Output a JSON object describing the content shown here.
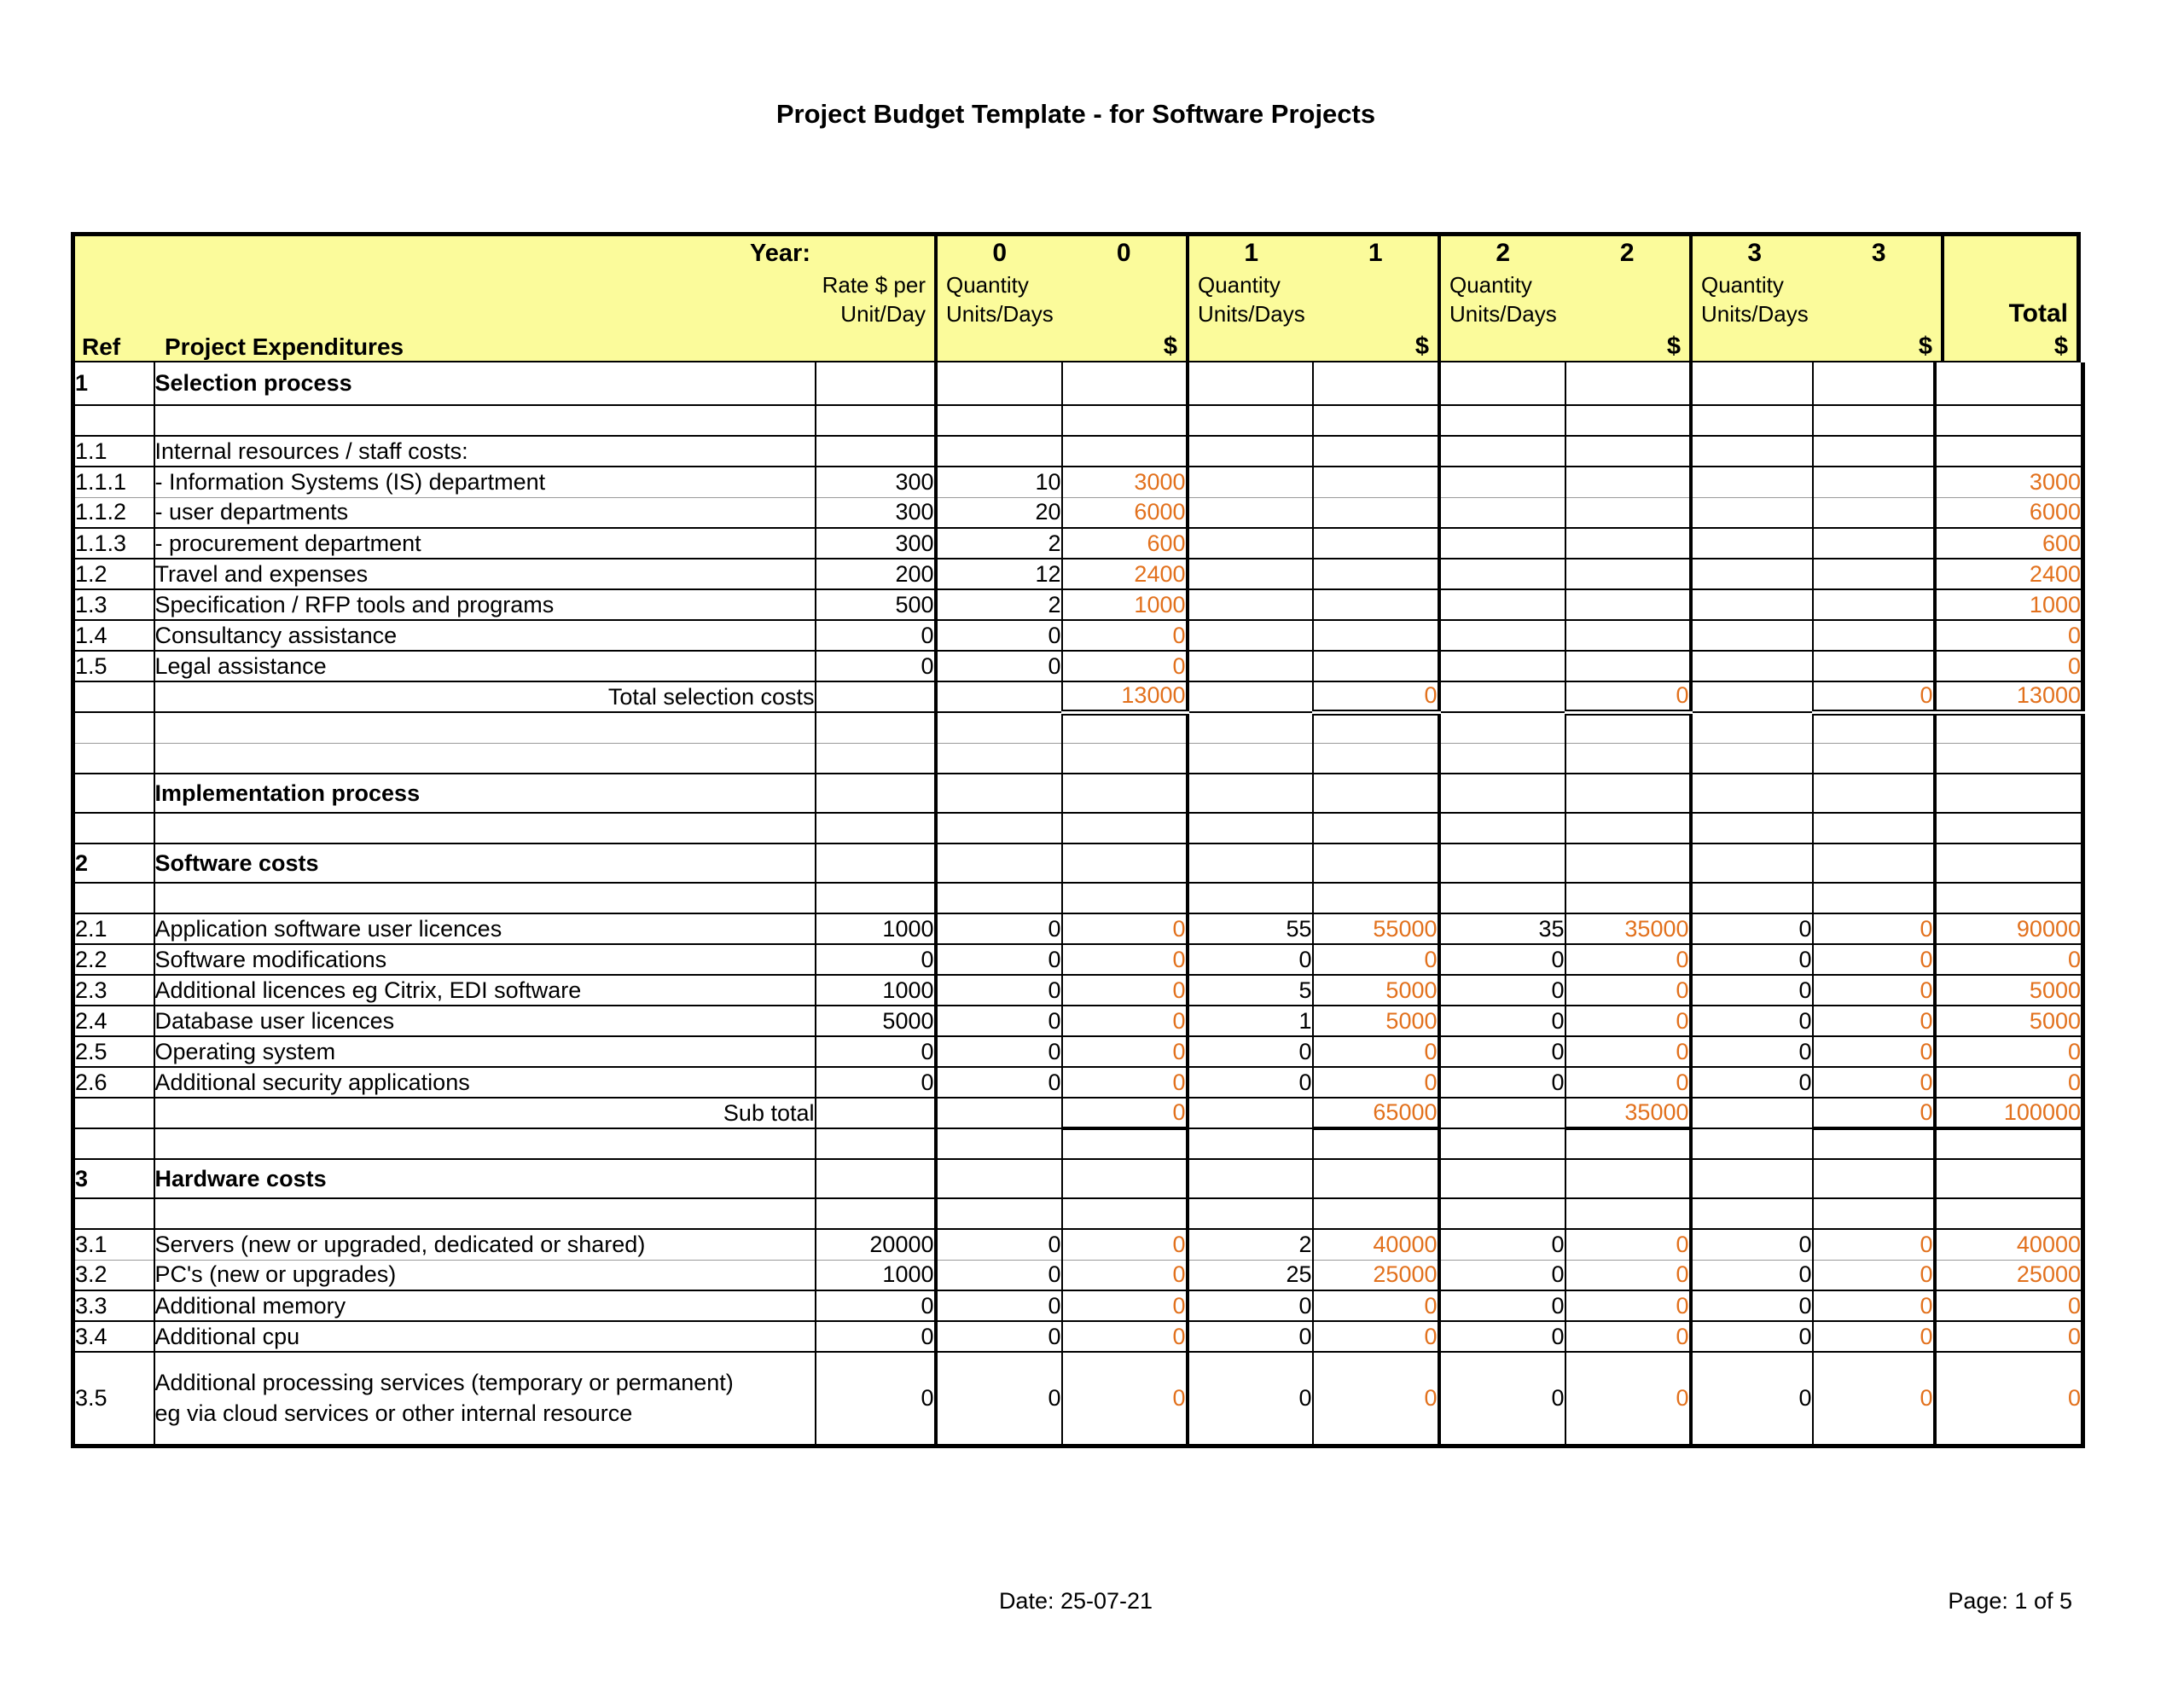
{
  "title": "Project Budget Template - for Software Projects",
  "footer": {
    "date": "Date: 25-07-21",
    "page": "Page: 1 of 5"
  },
  "colors": {
    "header_yellow": "#fbfb9b",
    "value_orange": "#e2711d"
  },
  "header": {
    "year_label": "Year:",
    "years": [
      "0",
      "1",
      "2",
      "3"
    ],
    "rate_line1": "Rate $ per",
    "rate_line2": "Unit/Day",
    "qty_line1": "Quantity",
    "qty_line2": "Units/Days",
    "ref_label": "Ref",
    "expenditures_label": "Project Expenditures",
    "dollar": "$",
    "total_label": "Total"
  },
  "table": {
    "rows": [
      {
        "type": "section",
        "ref": "1",
        "desc": "Selection process",
        "h": 50
      },
      {
        "type": "blank"
      },
      {
        "type": "item",
        "ref": "1.1",
        "desc": "Internal resources / staff costs:"
      },
      {
        "type": "item",
        "ref": "1.1.1",
        "desc": "- Information Systems (IS) department",
        "rate": "300",
        "q0": "10",
        "v0": "3000",
        "total": "3000"
      },
      {
        "type": "item",
        "ref": "1.1.2",
        "desc": "- user departments",
        "rate": "300",
        "q0": "20",
        "v0": "6000",
        "total": "6000",
        "top": "soft"
      },
      {
        "type": "item",
        "ref": "1.1.3",
        "desc": "- procurement department",
        "rate": "300",
        "q0": "2",
        "v0": "600",
        "total": "600"
      },
      {
        "type": "item",
        "ref": "1.2",
        "desc": "Travel and expenses",
        "rate": "200",
        "q0": "12",
        "v0": "2400",
        "total": "2400"
      },
      {
        "type": "item",
        "ref": "1.3",
        "desc": "Specification / RFP tools and programs",
        "rate": "500",
        "q0": "2",
        "v0": "1000",
        "total": "1000"
      },
      {
        "type": "item",
        "ref": "1.4",
        "desc": "Consultancy assistance",
        "rate": "0",
        "q0": "0",
        "v0": "0",
        "total": "0"
      },
      {
        "type": "item",
        "ref": "1.5",
        "desc": "Legal assistance",
        "rate": "0",
        "q0": "0",
        "v0": "0",
        "total": "0"
      },
      {
        "type": "total",
        "desc": "Total selection costs",
        "v0": "13000",
        "v1": "0",
        "v2": "0",
        "v3": "0",
        "total": "13000",
        "underline": "double"
      },
      {
        "type": "blank"
      },
      {
        "type": "blank",
        "top": "soft"
      },
      {
        "type": "section",
        "ref": "",
        "desc": "Implementation process",
        "h": 46
      },
      {
        "type": "blank"
      },
      {
        "type": "section",
        "ref": "2",
        "desc": "Software costs",
        "h": 46
      },
      {
        "type": "blank"
      },
      {
        "type": "item",
        "ref": "2.1",
        "desc": "Application software user licences",
        "rate": "1000",
        "q0": "0",
        "v0": "0",
        "q1": "55",
        "v1": "55000",
        "q2": "35",
        "v2": "35000",
        "q3": "0",
        "v3": "0",
        "total": "90000"
      },
      {
        "type": "item",
        "ref": "2.2",
        "desc": "Software modifications",
        "rate": "0",
        "q0": "0",
        "v0": "0",
        "q1": "0",
        "v1": "0",
        "q2": "0",
        "v2": "0",
        "q3": "0",
        "v3": "0",
        "total": "0"
      },
      {
        "type": "item",
        "ref": "2.3",
        "desc": "Additional licences eg Citrix, EDI software",
        "rate": "1000",
        "q0": "0",
        "v0": "0",
        "q1": "5",
        "v1": "5000",
        "q2": "0",
        "v2": "0",
        "q3": "0",
        "v3": "0",
        "total": "5000"
      },
      {
        "type": "item",
        "ref": "2.4",
        "desc": "Database user licences",
        "rate": "5000",
        "q0": "0",
        "v0": "0",
        "q1": "1",
        "v1": "5000",
        "q2": "0",
        "v2": "0",
        "q3": "0",
        "v3": "0",
        "total": "5000"
      },
      {
        "type": "item",
        "ref": "2.5",
        "desc": "Operating system",
        "rate": "0",
        "q0": "0",
        "v0": "0",
        "q1": "0",
        "v1": "0",
        "q2": "0",
        "v2": "0",
        "q3": "0",
        "v3": "0",
        "total": "0"
      },
      {
        "type": "item",
        "ref": "2.6",
        "desc": "Additional security applications",
        "rate": "0",
        "q0": "0",
        "v0": "0",
        "q1": "0",
        "v1": "0",
        "q2": "0",
        "v2": "0",
        "q3": "0",
        "v3": "0",
        "total": "0"
      },
      {
        "type": "total",
        "desc": "Sub total",
        "v0": "0",
        "v1": "65000",
        "v2": "35000",
        "v3": "0",
        "total": "100000",
        "underline": "single"
      },
      {
        "type": "blank"
      },
      {
        "type": "section",
        "ref": "3",
        "desc": "Hardware costs",
        "h": 46
      },
      {
        "type": "blank"
      },
      {
        "type": "item",
        "ref": "3.1",
        "desc": "Servers (new or upgraded, dedicated or shared)",
        "rate": "20000",
        "q0": "0",
        "v0": "0",
        "q1": "2",
        "v1": "40000",
        "q2": "0",
        "v2": "0",
        "q3": "0",
        "v3": "0",
        "total": "40000"
      },
      {
        "type": "item",
        "ref": "3.2",
        "desc": "PC's (new or upgrades)",
        "rate": "1000",
        "q0": "0",
        "v0": "0",
        "q1": "25",
        "v1": "25000",
        "q2": "0",
        "v2": "0",
        "q3": "0",
        "v3": "0",
        "total": "25000",
        "top": "soft"
      },
      {
        "type": "item",
        "ref": "3.3",
        "desc": "Additional memory",
        "rate": "0",
        "q0": "0",
        "v0": "0",
        "q1": "0",
        "v1": "0",
        "q2": "0",
        "v2": "0",
        "q3": "0",
        "v3": "0",
        "total": "0"
      },
      {
        "type": "item",
        "ref": "3.4",
        "desc": "Additional cpu",
        "rate": "0",
        "q0": "0",
        "v0": "0",
        "q1": "0",
        "v1": "0",
        "q2": "0",
        "v2": "0",
        "q3": "0",
        "v3": "0",
        "total": "0"
      },
      {
        "type": "item",
        "ref": "3.5",
        "desc_lines": [
          "Additional processing services (temporary or permanent)",
          "eg via cloud services or other internal resource"
        ],
        "rate": "0",
        "q0": "0",
        "v0": "0",
        "q1": "0",
        "v1": "0",
        "q2": "0",
        "v2": "0",
        "q3": "0",
        "v3": "0",
        "total": "0",
        "h": 110,
        "tall": true
      }
    ]
  }
}
